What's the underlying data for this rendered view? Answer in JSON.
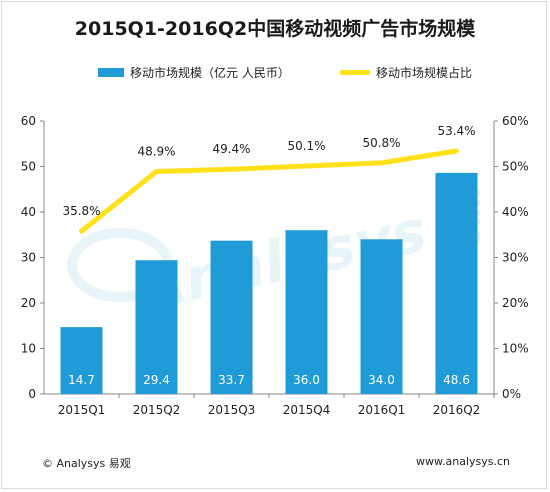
{
  "chart_data": {
    "type": "bar",
    "title": "2015Q1-2016Q2中国移动视频广告市场规模",
    "categories": [
      "2015Q1",
      "2015Q2",
      "2015Q3",
      "2015Q4",
      "2016Q1",
      "2016Q2"
    ],
    "series": [
      {
        "name": "移动市场规模（亿元 人民币）",
        "type": "bar",
        "axis": "left",
        "color": "#1f9bd7",
        "values": [
          14.7,
          29.4,
          33.7,
          36.0,
          34.0,
          48.6
        ],
        "labels": [
          "14.7",
          "29.4",
          "33.7",
          "36.0",
          "34.0",
          "48.6"
        ]
      },
      {
        "name": "移动市场规模占比",
        "type": "line",
        "axis": "right",
        "color": "#ffe119",
        "values": [
          35.8,
          48.9,
          49.4,
          50.1,
          50.8,
          53.4
        ],
        "labels": [
          "35.8%",
          "48.9%",
          "49.4%",
          "50.1%",
          "50.8%",
          "53.4%"
        ]
      }
    ],
    "y_left": {
      "ylim": [
        0,
        60
      ],
      "ticks": [
        "0",
        "10",
        "20",
        "30",
        "40",
        "50",
        "60"
      ]
    },
    "y_right": {
      "ylim": [
        0,
        60
      ],
      "ticks": [
        "0%",
        "10%",
        "20%",
        "30%",
        "40%",
        "50%",
        "60%"
      ]
    },
    "grid": false,
    "legend_position": "top"
  },
  "footer": {
    "source": "© Analysys 易观",
    "website": "www.analysys.cn"
  },
  "watermark": {
    "text": "Analysys 易观"
  }
}
